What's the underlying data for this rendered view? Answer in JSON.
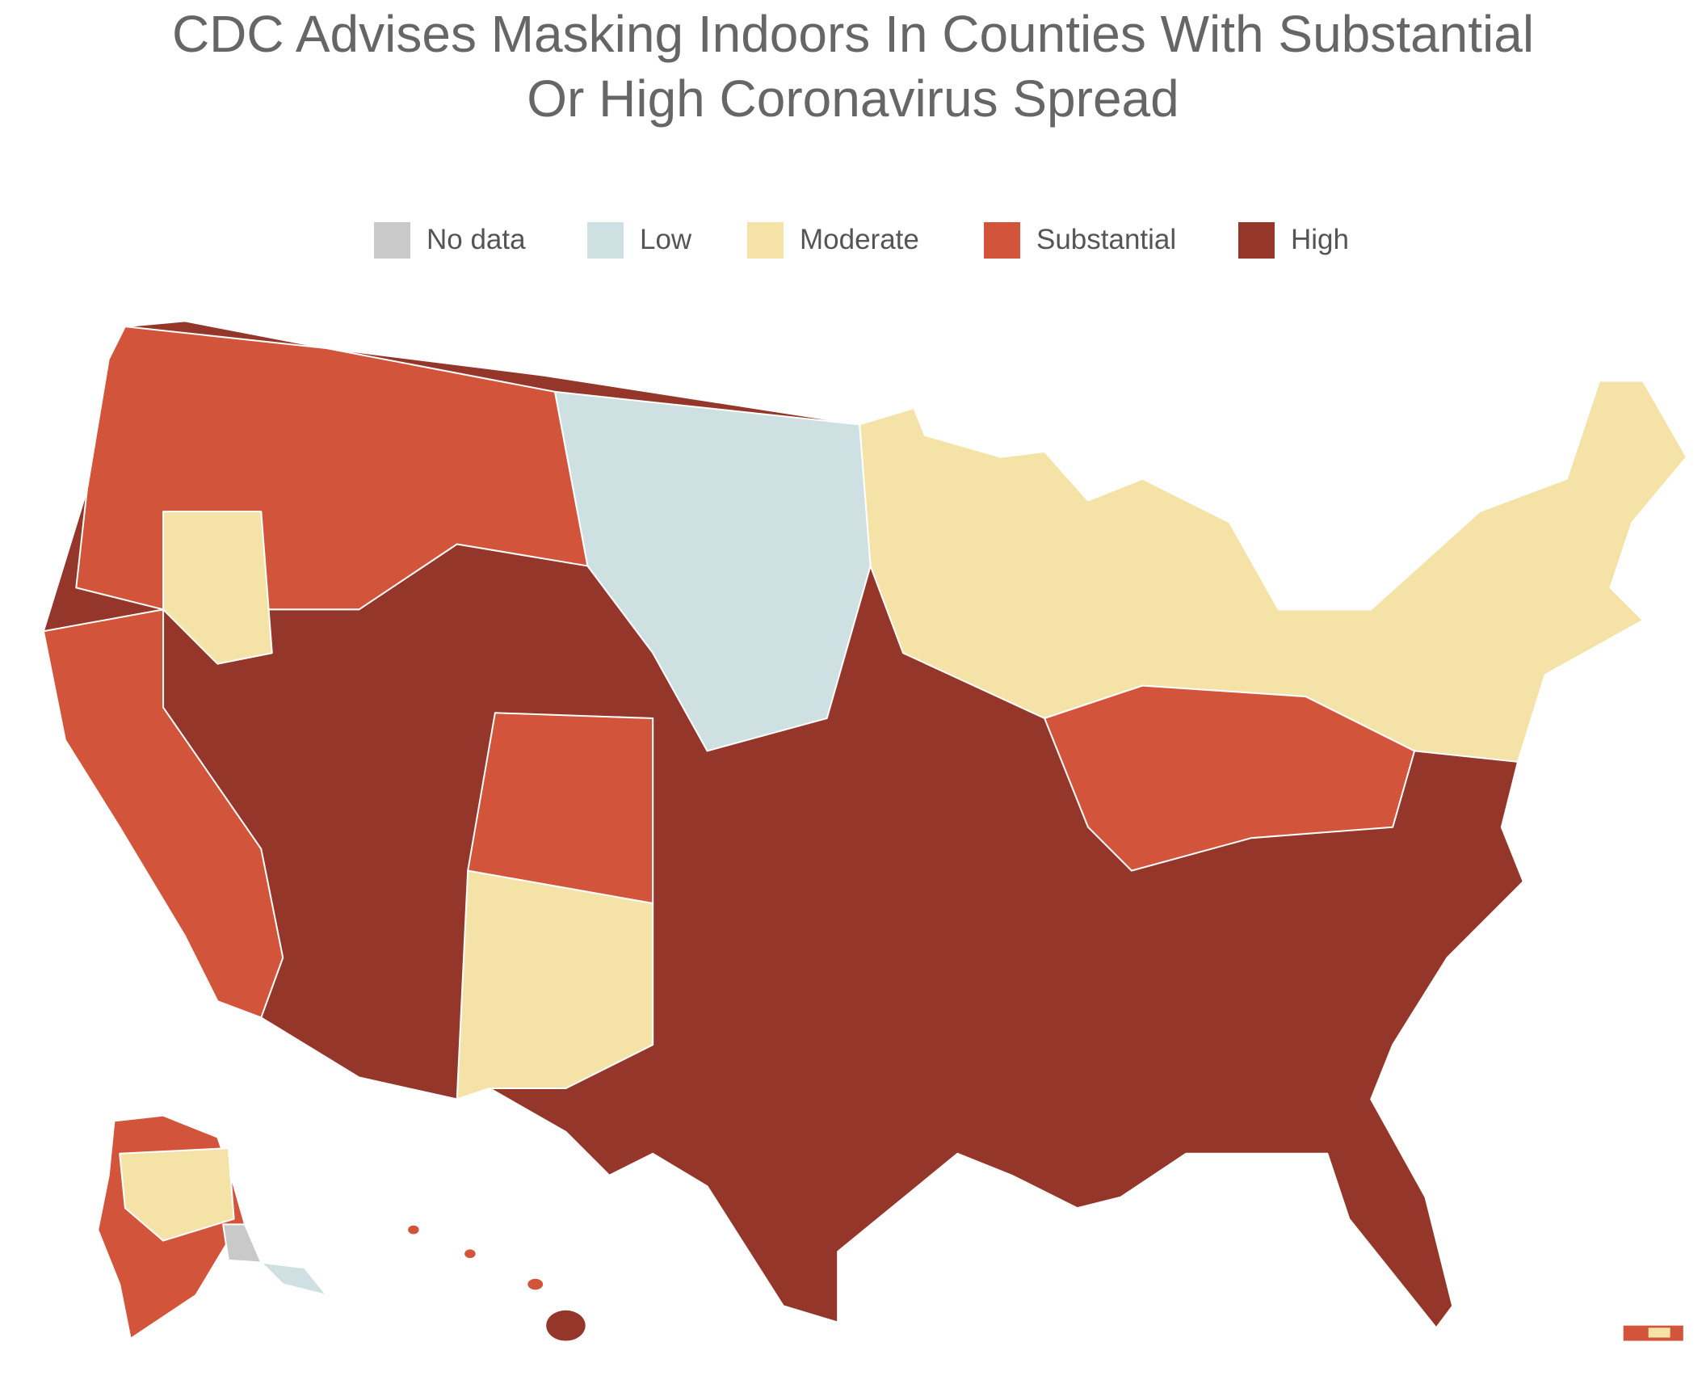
{
  "title": [
    "CDC Advises Masking Indoors In Counties With Substantial",
    "Or High Coronavirus Spread"
  ],
  "legend": [
    {
      "label": "No data",
      "color": "#c9c9c9"
    },
    {
      "label": "Low",
      "color": "#cfe0e3"
    },
    {
      "label": "Moderate",
      "color": "#f4e2a6"
    },
    {
      "label": "Substantial",
      "color": "#d2543a"
    },
    {
      "label": "High",
      "color": "#943629"
    }
  ]
}
